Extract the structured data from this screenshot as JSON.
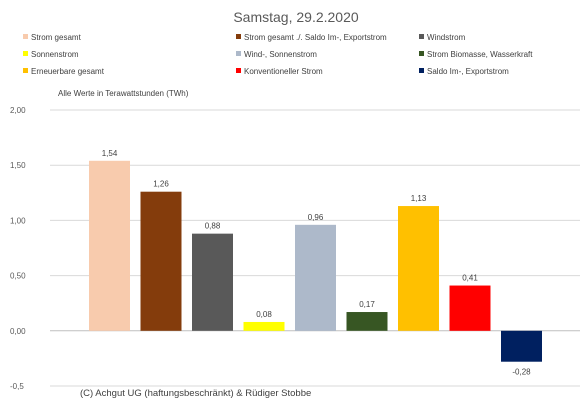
{
  "chart_data": {
    "type": "bar",
    "title": "Samstag, 29.2.2020",
    "note": "Alle Werte in Terawattstunden (TWh)",
    "credit": "(C) Achgut UG (haftungsbeschränkt) & Rüdiger Stobbe",
    "ylim": [
      -0.5,
      2.0
    ],
    "yticks": [
      2.0,
      1.5,
      1.0,
      0.5,
      0.0,
      -0.5
    ],
    "ytick_labels": [
      "2,00",
      "1,50",
      "1,00",
      "0,50",
      "0,00",
      "-0,5"
    ],
    "grid": true,
    "legend_position": "top",
    "series": [
      {
        "name": "Strom gesamt",
        "value": 1.54,
        "label": "1,54",
        "color": "#F8CBAD"
      },
      {
        "name": "Strom gesamt ./. Saldo Im-, Exportstrom",
        "value": 1.26,
        "label": "1,26",
        "color": "#843C0C"
      },
      {
        "name": "Windstrom",
        "value": 0.88,
        "label": "0,88",
        "color": "#595959"
      },
      {
        "name": "Sonnenstrom",
        "value": 0.08,
        "label": "0,08",
        "color": "#FFFF00"
      },
      {
        "name": "Wind-, Sonnenstrom",
        "value": 0.96,
        "label": "0,96",
        "color": "#ADB9CA"
      },
      {
        "name": "Strom Biomasse, Wasserkraft",
        "value": 0.17,
        "label": "0,17",
        "color": "#375623"
      },
      {
        "name": "Erneuerbare gesamt",
        "value": 1.13,
        "label": "1,13",
        "color": "#FFC000"
      },
      {
        "name": "Konventioneller Strom",
        "value": 0.41,
        "label": "0,41",
        "color": "#FF0000"
      },
      {
        "name": "Saldo Im-, Exportstrom",
        "value": -0.28,
        "label": "-0,28",
        "color": "#002060"
      }
    ]
  }
}
